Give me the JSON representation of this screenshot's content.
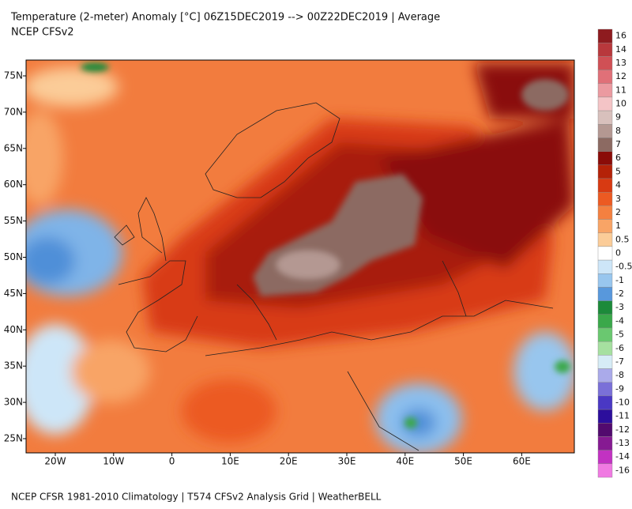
{
  "header": {
    "title": "Temperature (2-meter) Anomaly  [°C] 06Z15DEC2019 --> 00Z22DEC2019 | Average",
    "subtitle": "NCEP CFSv2"
  },
  "map": {
    "lat_labels": [
      "75N",
      "70N",
      "65N",
      "60N",
      "55N",
      "50N",
      "45N",
      "40N",
      "35N",
      "30N",
      "25N"
    ],
    "lon_labels": [
      "20W",
      "10W",
      "0",
      "10E",
      "20E",
      "30E",
      "40E",
      "50E",
      "60E"
    ]
  },
  "colorbar": {
    "entries": [
      {
        "label": "16",
        "color": "#8e1b1f"
      },
      {
        "label": "14",
        "color": "#b8383c"
      },
      {
        "label": "13",
        "color": "#d05055"
      },
      {
        "label": "12",
        "color": "#e07078"
      },
      {
        "label": "11",
        "color": "#eb9aa0"
      },
      {
        "label": "10",
        "color": "#f4c4c6"
      },
      {
        "label": "9",
        "color": "#d8c0bc"
      },
      {
        "label": "8",
        "color": "#b49892"
      },
      {
        "label": "7",
        "color": "#8c6a62"
      },
      {
        "label": "6",
        "color": "#8a0c08"
      },
      {
        "label": "5",
        "color": "#b42208"
      },
      {
        "label": "4",
        "color": "#d83a12"
      },
      {
        "label": "3",
        "color": "#ec5a22"
      },
      {
        "label": "2",
        "color": "#f48040"
      },
      {
        "label": "1",
        "color": "#f8a466"
      },
      {
        "label": "0.5",
        "color": "#fbcc98"
      },
      {
        "label": "0",
        "color": "#ffffff"
      },
      {
        "label": "-0.5",
        "color": "#cde6f8"
      },
      {
        "label": "-1",
        "color": "#98c6ee"
      },
      {
        "label": "-2",
        "color": "#5898dc"
      },
      {
        "label": "-3",
        "color": "#1c8a3a"
      },
      {
        "label": "-4",
        "color": "#3aa84a"
      },
      {
        "label": "-5",
        "color": "#6ac870"
      },
      {
        "label": "-6",
        "color": "#a6e0a0"
      },
      {
        "label": "-7",
        "color": "#d6ecf6"
      },
      {
        "label": "-8",
        "color": "#aaaaea"
      },
      {
        "label": "-9",
        "color": "#7a70d8"
      },
      {
        "label": "-10",
        "color": "#4a38c4"
      },
      {
        "label": "-11",
        "color": "#2c0e9c"
      },
      {
        "label": "-12",
        "color": "#520a6e"
      },
      {
        "label": "-13",
        "color": "#861a92"
      },
      {
        "label": "-14",
        "color": "#c232c2"
      },
      {
        "label": "-16",
        "color": "#f07ae2"
      }
    ]
  },
  "footer": "NCEP CFSR 1981-2010 Climatology | T574 CFSv2 Analysis Grid | WeatherBELL"
}
